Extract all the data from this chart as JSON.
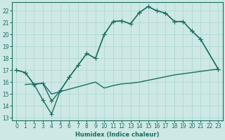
{
  "bg_color": "#cde8e5",
  "line_color": "#1a6e62",
  "grid_color": "#b0d8d4",
  "xlabel": "Humidex (Indice chaleur)",
  "xlim": [
    -0.5,
    23.5
  ],
  "ylim": [
    12.8,
    22.7
  ],
  "yticks": [
    13,
    14,
    15,
    16,
    17,
    18,
    19,
    20,
    21,
    22
  ],
  "xticks": [
    0,
    1,
    2,
    3,
    4,
    5,
    6,
    7,
    8,
    9,
    10,
    11,
    12,
    13,
    14,
    15,
    16,
    17,
    18,
    19,
    20,
    21,
    22,
    23
  ],
  "curve1_x": [
    0,
    1,
    2,
    3,
    4,
    5,
    6,
    7,
    8,
    9,
    10,
    11,
    12,
    13,
    14,
    15,
    16,
    17,
    18,
    19,
    20,
    21,
    23
  ],
  "curve1_y": [
    17.0,
    16.8,
    15.8,
    15.9,
    14.4,
    15.3,
    16.4,
    17.4,
    18.4,
    18.0,
    20.0,
    21.1,
    21.15,
    20.9,
    21.85,
    22.35,
    22.0,
    21.8,
    21.1,
    21.1,
    20.3,
    19.6,
    17.1
  ],
  "curve2_x": [
    0,
    1,
    2,
    3,
    4,
    5,
    6,
    7,
    8,
    9,
    10,
    11,
    12,
    13,
    14,
    15,
    16,
    17,
    18,
    19,
    20,
    21,
    23
  ],
  "curve2_y": [
    17.0,
    16.8,
    15.8,
    14.5,
    13.3,
    15.3,
    16.4,
    17.4,
    18.4,
    18.0,
    20.0,
    21.1,
    21.15,
    20.9,
    21.85,
    22.35,
    22.0,
    21.8,
    21.1,
    21.1,
    20.3,
    19.6,
    17.1
  ],
  "curve3_x": [
    1,
    2,
    3,
    4,
    5,
    6,
    7,
    8,
    9,
    10,
    11,
    12,
    13,
    14,
    15,
    16,
    17,
    18,
    19,
    20,
    21,
    22,
    23
  ],
  "curve3_y": [
    15.8,
    15.85,
    15.9,
    15.0,
    15.2,
    15.4,
    15.6,
    15.8,
    16.0,
    15.5,
    15.7,
    15.85,
    15.9,
    16.0,
    16.15,
    16.3,
    16.45,
    16.6,
    16.7,
    16.8,
    16.9,
    17.0,
    17.1
  ],
  "marker_size": 2.5,
  "line_width": 1.0,
  "tick_fontsize": 5.5
}
